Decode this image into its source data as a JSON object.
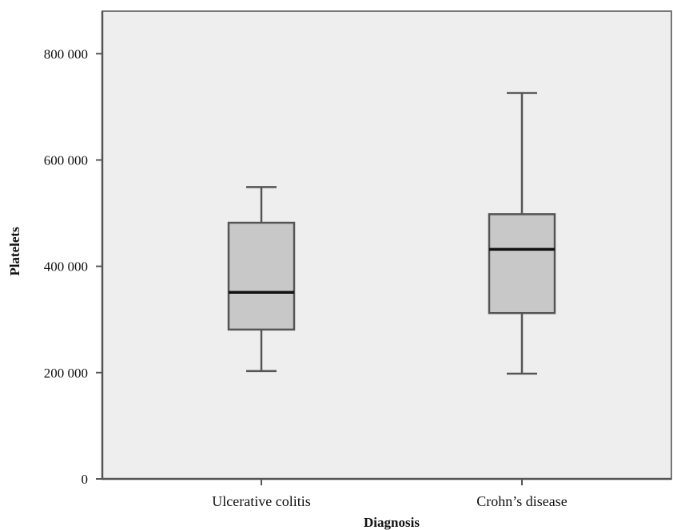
{
  "chart_data": {
    "type": "boxplot",
    "title": "",
    "xlabel": "Diagnosis",
    "ylabel": "Platelets",
    "ylim": [
      0,
      880000
    ],
    "yticks": [
      0,
      200000,
      400000,
      600000,
      800000
    ],
    "ytick_labels": [
      "0",
      "200 000",
      "400 000",
      "600 000",
      "800 000"
    ],
    "categories": [
      "Ulcerative colitis",
      "Crohn’s disease"
    ],
    "boxes": [
      {
        "category": "Ulcerative colitis",
        "min": 203000,
        "q1": 281000,
        "median": 351000,
        "q3": 482000,
        "max": 549000
      },
      {
        "category": "Crohn’s disease",
        "min": 198000,
        "q1": 312000,
        "median": 432000,
        "q3": 498000,
        "max": 726000
      }
    ],
    "grid": false,
    "legend": "none"
  },
  "colors": {
    "plot_background": "#eeeeee",
    "box_fill": "#c8c8c8",
    "stroke": "#555555",
    "median": "#111111"
  }
}
